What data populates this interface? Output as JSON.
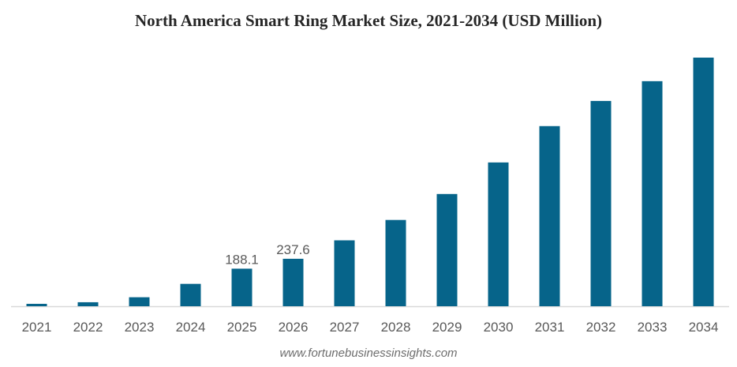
{
  "chart_data": {
    "type": "bar",
    "title": "North America Smart Ring Market Size, 2021-2034 (USD Million)",
    "xlabel": "",
    "ylabel": "",
    "categories": [
      "2021",
      "2022",
      "2023",
      "2024",
      "2025",
      "2026",
      "2027",
      "2028",
      "2029",
      "2030",
      "2031",
      "2032",
      "2033",
      "2034"
    ],
    "values": [
      12,
      20,
      45,
      112,
      188.1,
      237.6,
      330,
      432,
      562,
      720,
      902,
      1028,
      1127,
      1245
    ],
    "data_labels": {
      "2025": "188.1",
      "2026": "237.6"
    },
    "ylim": [
      0,
      1300
    ],
    "grid": false,
    "legend": "none",
    "bar_color": "#06648a",
    "source": "www.fortunebusinessinsights.com"
  }
}
